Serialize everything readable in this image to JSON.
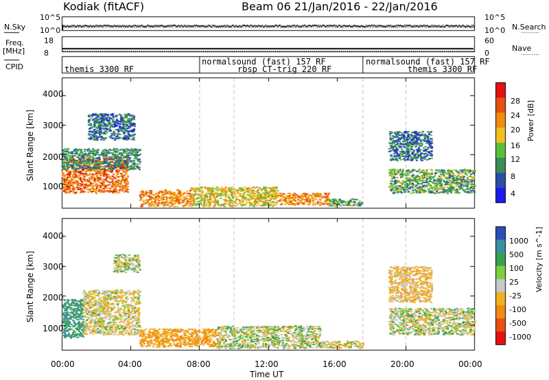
{
  "header": {
    "radar": "Kodiak (fitACF)",
    "beam_date": "Beam 06  21/Jan/2016 - 22/Jan/2016"
  },
  "left_labels": {
    "nsky": "N.Sky",
    "freq": "Freq.",
    "mhz": "[MHz]",
    "cpid": "CPID"
  },
  "right_labels": {
    "nsearch": "N.Search",
    "nave": "Nave"
  },
  "noise_axes": {
    "left_top": "10^5",
    "left_bottom": "10^0",
    "right_top": "10^5",
    "right_bottom": "10^0"
  },
  "freq_axes": {
    "left_top": "18",
    "left_bottom": "8",
    "right_top": "60",
    "right_bottom": "0"
  },
  "cpid_entries": [
    {
      "label": "themis 3300 RF",
      "row": 1,
      "start_hr": 0.3
    },
    {
      "label": "normalsound (fast) 157 RF",
      "row": 0,
      "start_hr": 8.0
    },
    {
      "label": "rbsp CT-trig 220 RF",
      "row": 1,
      "start_hr": 10.0
    },
    {
      "label": "normalsound (fast) 157 RF",
      "row": 0,
      "start_hr": 17.5
    },
    {
      "label": "themis 3300 RF",
      "row": 1,
      "start_hr": 20.0
    }
  ],
  "axes": {
    "ylabel": "Slant Range [km]",
    "xlabel": "Time UT",
    "yticks": [
      "1000",
      "2000",
      "3000",
      "4000"
    ],
    "xticks": [
      "00:00",
      "04:00",
      "08:00",
      "12:00",
      "16:00",
      "20:00",
      "00:00"
    ]
  },
  "power_bar": {
    "title": "Power [dB]",
    "ticks": [
      "4",
      "8",
      "12",
      "16",
      "20",
      "24",
      "28"
    ],
    "colors": [
      "#1c1cf0",
      "#2b4fa8",
      "#3d8c5a",
      "#5bbf3c",
      "#f0c020",
      "#f08c10",
      "#e85010",
      "#e61010"
    ]
  },
  "velocity_bar": {
    "title": "Velocity [m s^-1]",
    "ticks": [
      "1000",
      "500",
      "100",
      "25",
      "-25",
      "-100",
      "-500",
      "-1000"
    ],
    "colors": [
      "#2a50b8",
      "#3a8fa0",
      "#3aa050",
      "#7cd040",
      "#c8c8c8",
      "#f0b020",
      "#f08c10",
      "#e85010",
      "#e61010"
    ]
  },
  "chart_data": [
    {
      "type": "heatmap",
      "title": "Power",
      "colorbar_label": "Power [dB]",
      "xlabel": "Time UT",
      "ylabel": "Slant Range [km]",
      "xlim": [
        0,
        24
      ],
      "ylim": [
        180,
        4600
      ],
      "x_units": "hours UT",
      "regions": [
        {
          "t": [
            0.0,
            3.8
          ],
          "r": [
            700,
            1900
          ],
          "level": 24
        },
        {
          "t": [
            0.0,
            4.5
          ],
          "r": [
            1500,
            2200
          ],
          "level": 10
        },
        {
          "t": [
            1.5,
            4.2
          ],
          "r": [
            2500,
            3400
          ],
          "level": 8
        },
        {
          "t": [
            4.5,
            7.5
          ],
          "r": [
            250,
            800
          ],
          "level": 22
        },
        {
          "t": [
            7.5,
            12.5
          ],
          "r": [
            250,
            900
          ],
          "level": 18
        },
        {
          "t": [
            12.5,
            15.5
          ],
          "r": [
            300,
            700
          ],
          "level": 22
        },
        {
          "t": [
            15.5,
            17.5
          ],
          "r": [
            250,
            500
          ],
          "level": 12
        },
        {
          "t": [
            19.0,
            24.0
          ],
          "r": [
            700,
            1500
          ],
          "level": 12
        },
        {
          "t": [
            19.0,
            21.5
          ],
          "r": [
            1800,
            2800
          ],
          "level": 8
        }
      ]
    },
    {
      "type": "heatmap",
      "title": "Velocity",
      "colorbar_label": "Velocity [m s^-1]",
      "xlabel": "Time UT",
      "ylabel": "Slant Range [km]",
      "xlim": [
        0,
        24
      ],
      "ylim": [
        180,
        4600
      ],
      "x_units": "hours UT",
      "regions": [
        {
          "t": [
            0.0,
            1.2
          ],
          "r": [
            600,
            1900
          ],
          "v": 100
        },
        {
          "t": [
            1.2,
            4.5
          ],
          "r": [
            700,
            2200
          ],
          "v": -25
        },
        {
          "t": [
            3.0,
            4.5
          ],
          "r": [
            2800,
            3400
          ],
          "v": 0
        },
        {
          "t": [
            4.5,
            9.0
          ],
          "r": [
            300,
            900
          ],
          "v": -100
        },
        {
          "t": [
            9.0,
            15.0
          ],
          "r": [
            250,
            1000
          ],
          "v": 0
        },
        {
          "t": [
            15.0,
            17.5
          ],
          "r": [
            250,
            500
          ],
          "v": -25
        },
        {
          "t": [
            19.0,
            24.0
          ],
          "r": [
            700,
            1600
          ],
          "v": 0
        },
        {
          "t": [
            19.0,
            21.5
          ],
          "r": [
            1800,
            3000
          ],
          "v": -50
        }
      ]
    }
  ]
}
